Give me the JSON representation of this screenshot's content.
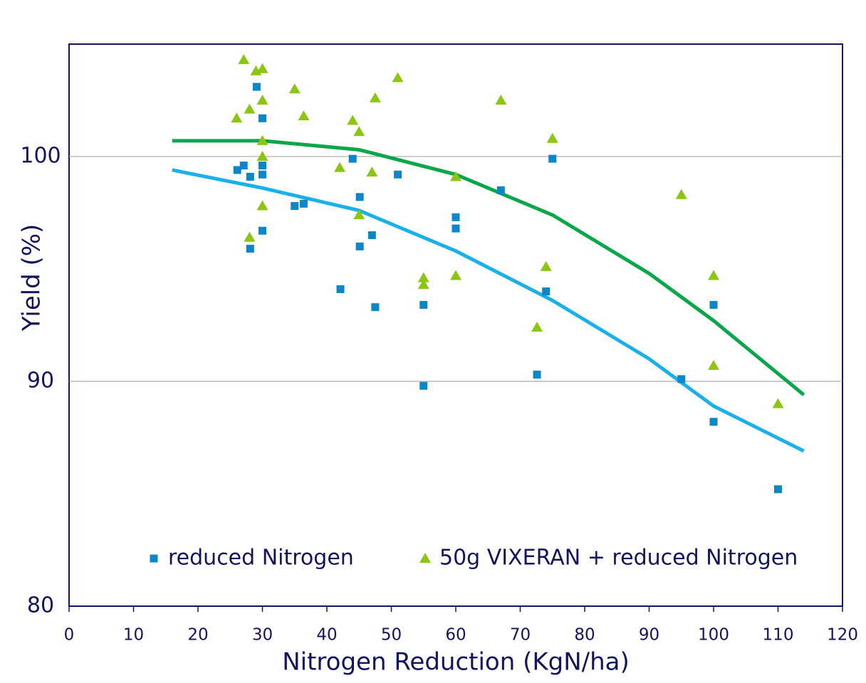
{
  "chart_data": {
    "type": "scatter",
    "xlabel": "Nitrogen Reduction (KgN/ha)",
    "ylabel": "Yield (%)",
    "xlim": [
      0,
      120
    ],
    "ylim": [
      80,
      105
    ],
    "xticks": [
      0,
      10,
      20,
      30,
      40,
      50,
      60,
      70,
      80,
      90,
      100,
      110,
      120
    ],
    "yticks": [
      80,
      90,
      100
    ],
    "grid": true,
    "legend": "lower center",
    "series": [
      {
        "name": "reduced Nitrogen",
        "color": "#0a86c9",
        "marker": "square",
        "x": [
          26.1,
          27.1,
          28.1,
          28.1,
          29.1,
          30,
          30,
          30,
          30,
          35,
          36.4,
          42.1,
          44,
          45.1,
          45.1,
          47,
          47.5,
          51,
          55,
          55,
          60,
          60,
          67,
          72.6,
          74,
          75,
          95,
          100,
          100,
          110
        ],
        "values": [
          99.4,
          99.6,
          99.1,
          95.9,
          103.1,
          101.7,
          99.6,
          99.2,
          96.7,
          97.8,
          97.9,
          94.1,
          99.9,
          98.2,
          96.0,
          96.5,
          93.3,
          99.2,
          93.4,
          89.8,
          97.3,
          96.8,
          98.5,
          90.3,
          94.0,
          99.9,
          90.1,
          93.4,
          88.2,
          85.2
        ]
      },
      {
        "name": "50g VIXERAN + reduced Nitrogen",
        "color": "#8cc613",
        "marker": "triangle",
        "x": [
          27.1,
          26,
          28,
          29,
          30,
          30,
          30,
          30,
          30,
          28,
          35,
          36.4,
          42,
          44,
          45,
          45,
          47,
          47.5,
          51,
          55,
          55,
          60,
          60,
          67,
          72.6,
          74,
          75,
          95,
          100,
          100,
          110
        ],
        "values": [
          104.3,
          101.7,
          102.1,
          103.8,
          103.9,
          102.5,
          100.7,
          100,
          97.8,
          96.4,
          103.0,
          101.8,
          99.5,
          101.6,
          101.1,
          97.4,
          99.3,
          102.6,
          103.5,
          94.6,
          94.3,
          99.1,
          94.7,
          102.5,
          92.4,
          95.1,
          100.8,
          98.3,
          94.7,
          90.7,
          89.0
        ]
      }
    ],
    "trendlines": [
      {
        "color": "#1ab0ea",
        "x": [
          16,
          30,
          45,
          60,
          75,
          90,
          100,
          114
        ],
        "values": [
          99.4,
          98.6,
          97.6,
          95.8,
          93.6,
          91.0,
          88.9,
          86.9
        ]
      },
      {
        "color": "#0aa64a",
        "x": [
          16,
          30,
          45,
          60,
          75,
          90,
          100,
          114
        ],
        "values": [
          100.7,
          100.7,
          100.3,
          99.2,
          97.4,
          94.8,
          92.7,
          89.4
        ]
      }
    ]
  }
}
